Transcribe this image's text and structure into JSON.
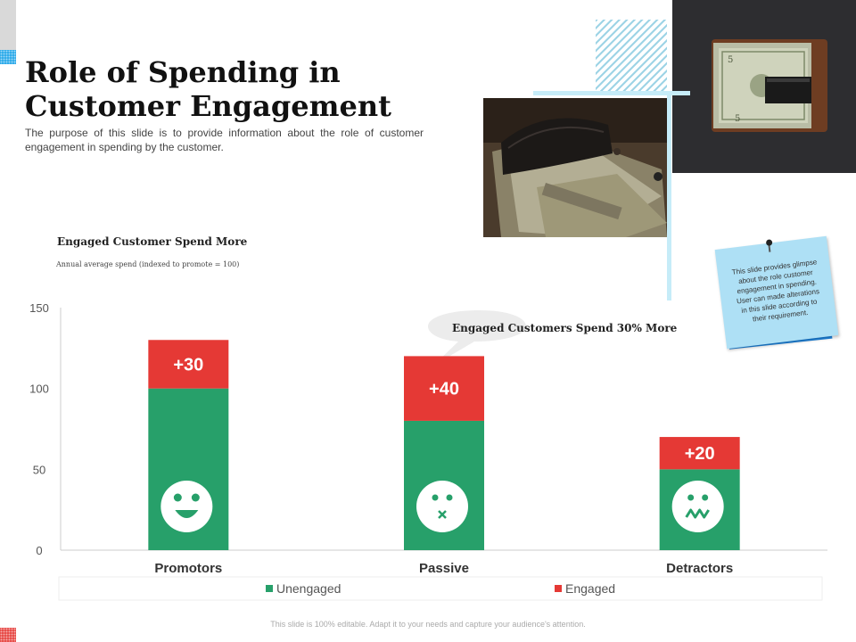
{
  "header": {
    "title": "Role of Spending in Customer Engagement",
    "subtitle": "The purpose of this slide is to provide information about the role of customer engagement in spending by the customer."
  },
  "images": {
    "wallet_photo": "wallet-with-cash-photo",
    "money_clip_photo": "money-clip-with-dollars-photo"
  },
  "sticky_note": {
    "text": "This slide provides glimpse about the role customer engagement in spending. User can made alterations in this slide according to their requirement."
  },
  "callout": {
    "text": "Engaged Customers Spend 30% More"
  },
  "chart_data": {
    "type": "bar",
    "stacked": true,
    "title": "Engaged Customer Spend More",
    "subtitle": "Annual average spend (indexed to promote = 100)",
    "categories": [
      "Promotors",
      "Passive",
      "Detractors"
    ],
    "series": [
      {
        "name": "Unengaged",
        "values": [
          100,
          80,
          50
        ],
        "color": "#27a06a"
      },
      {
        "name": "Engaged",
        "values": [
          30,
          40,
          20
        ],
        "color": "#e53935"
      }
    ],
    "data_labels": [
      "+30",
      "+40",
      "+20"
    ],
    "face_icons": [
      "happy-face-icon",
      "surprised-face-icon",
      "worried-face-icon"
    ],
    "ylim": [
      0,
      150
    ],
    "yticks": [
      0,
      50,
      100,
      150
    ],
    "legend": "bottom",
    "grid": false
  },
  "footer": {
    "text": "This slide is 100% editable. Adapt it to your needs and capture your audience's attention."
  }
}
